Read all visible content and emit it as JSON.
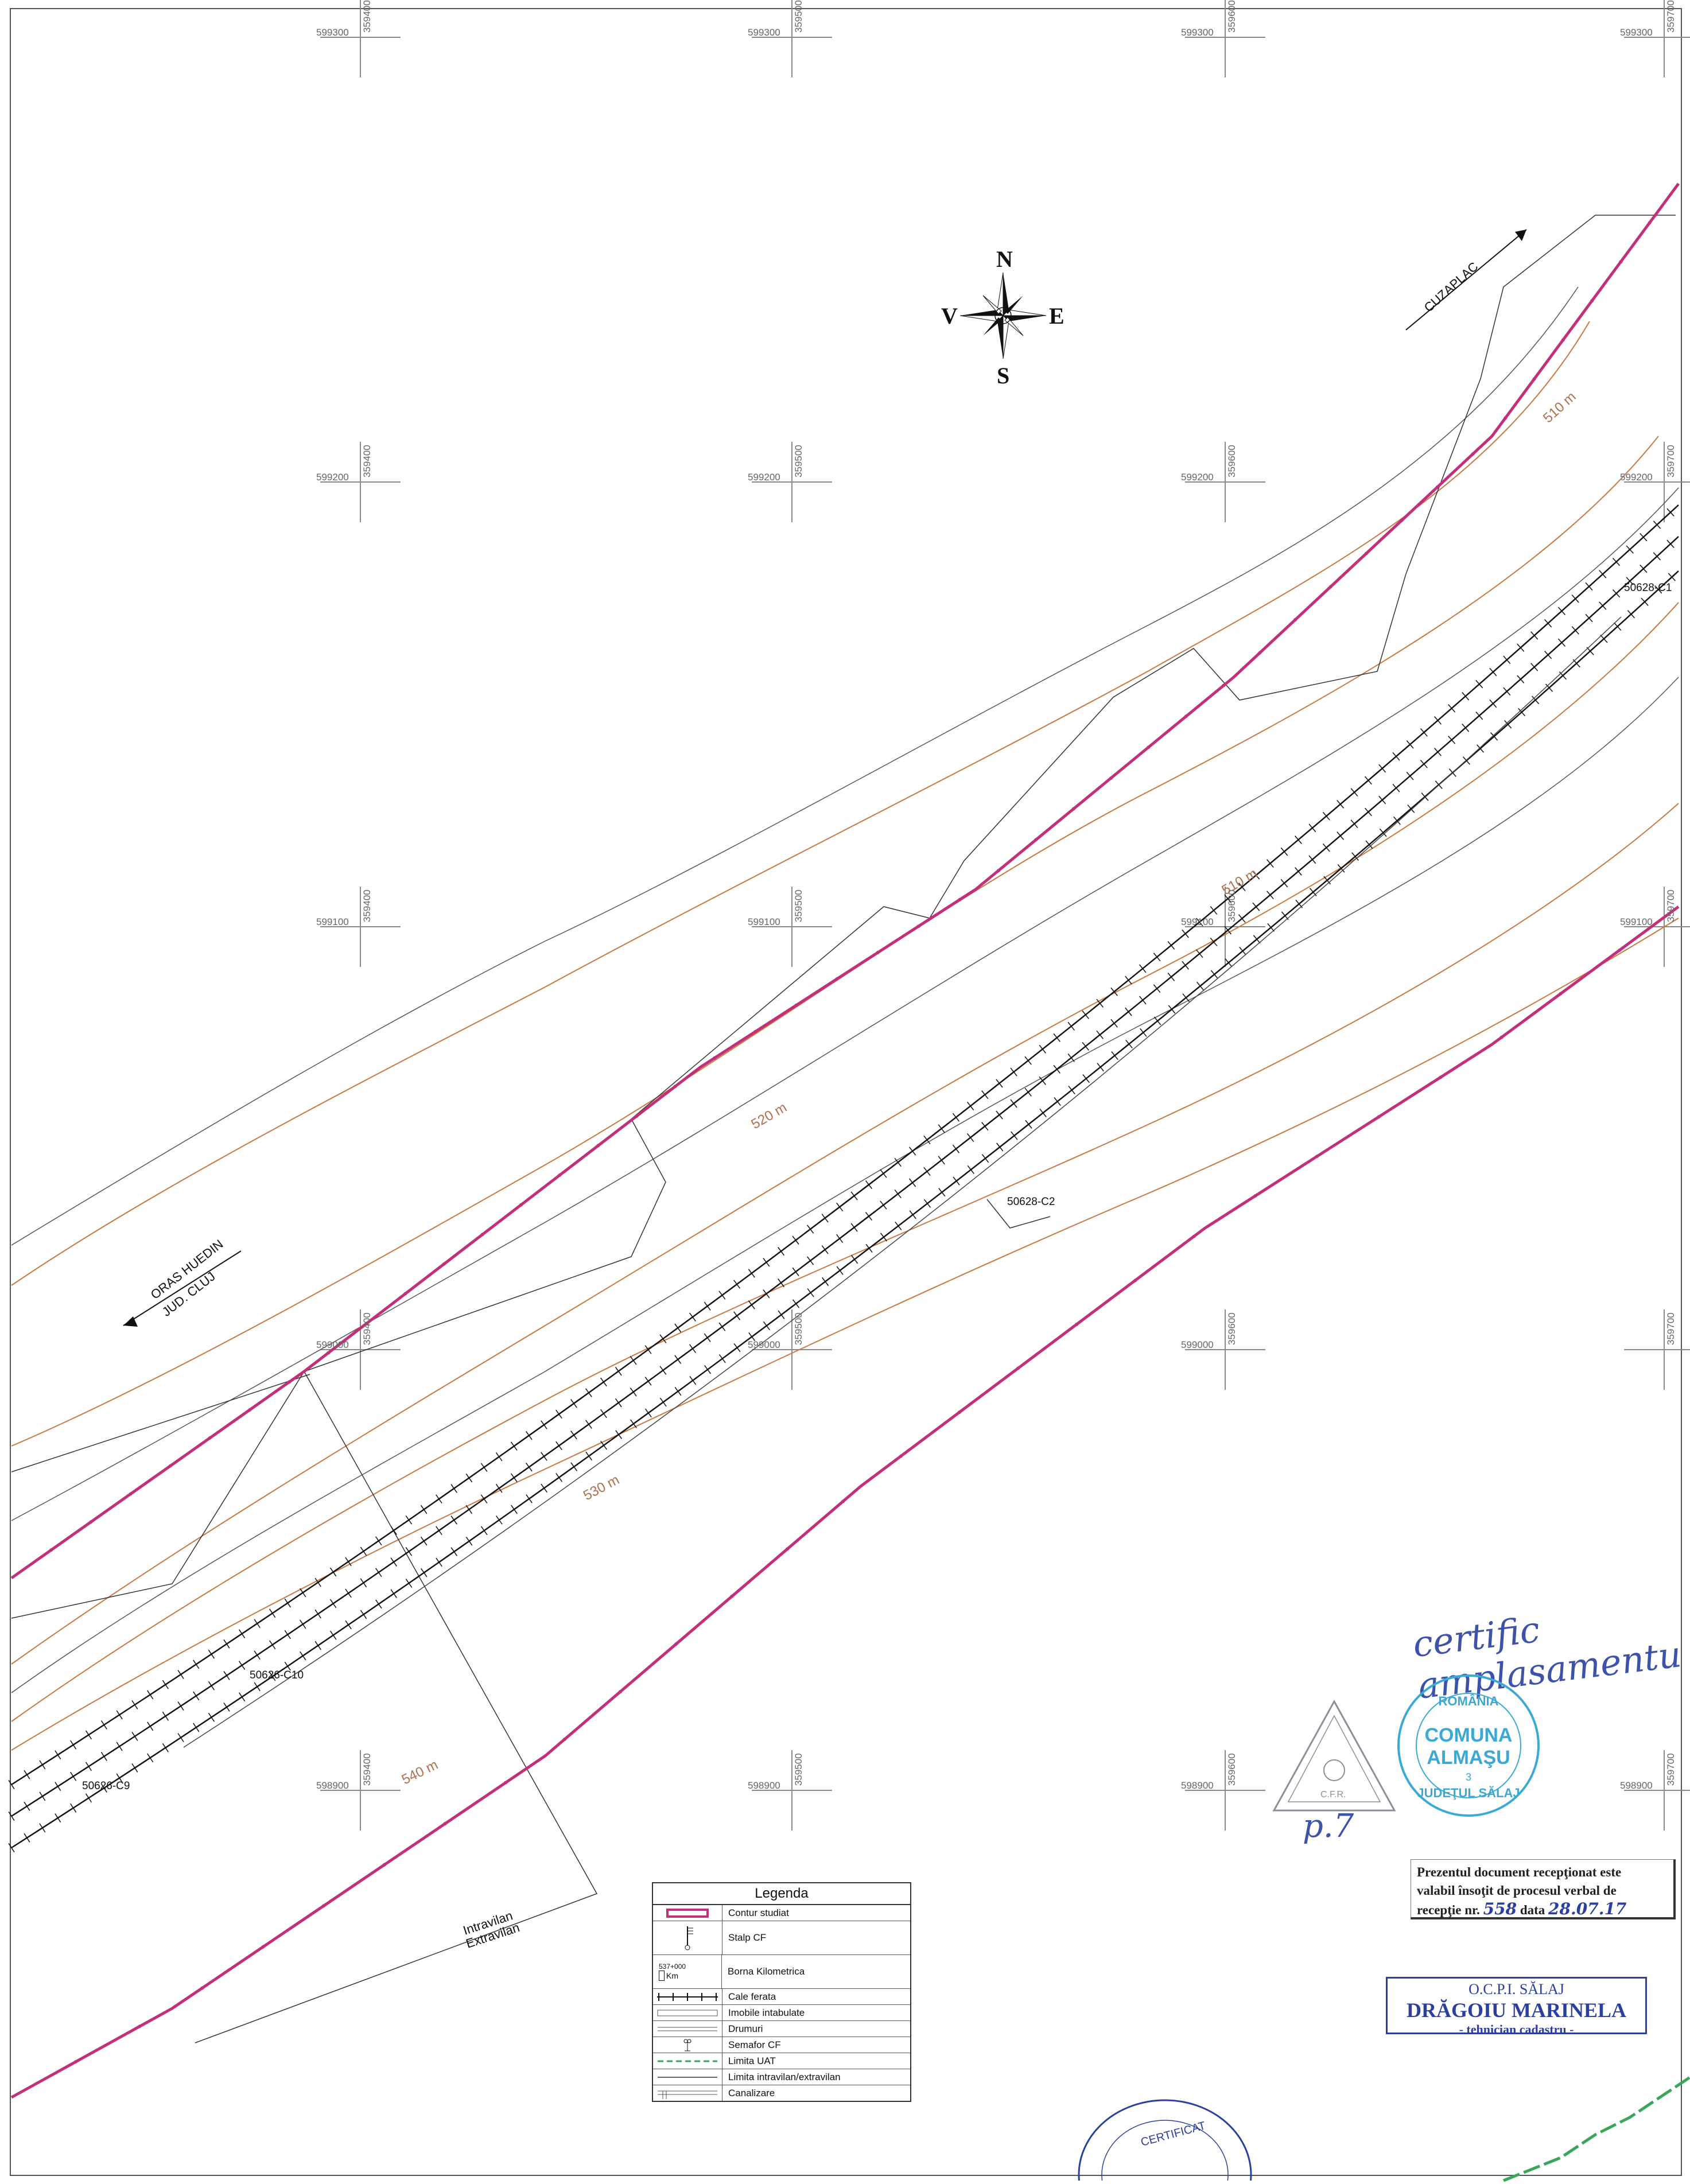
{
  "map": {
    "compass": {
      "n": "N",
      "s": "S",
      "e": "E",
      "v": "V"
    },
    "direction_labels": {
      "cuzaplac": "CUZAPLAC",
      "huedin_line1": "ORAS HUEDIN",
      "huedin_line2": "JUD. CLUJ"
    },
    "grid_labels": {
      "row1": [
        "599300",
        "599300",
        "599300",
        "599300"
      ],
      "row2": [
        "599200",
        "599200",
        "599200",
        "599200"
      ],
      "row3": [
        "599100",
        "599100",
        "599100",
        "599100"
      ],
      "row4": [
        "599000",
        "599000",
        "599000"
      ],
      "row5": [
        "598900",
        "598900",
        "598900",
        "598900"
      ],
      "cols_row1": [
        "359400",
        "359500",
        "359600",
        "359700"
      ],
      "cols_row2": [
        "359400",
        "359500",
        "359600",
        "359700"
      ],
      "cols_row3": [
        "359400",
        "359500",
        "359600",
        "359700"
      ],
      "cols_row4": [
        "359400",
        "359500",
        "359600",
        "359700"
      ],
      "cols_row5": [
        "359400",
        "359500",
        "359600",
        "359700"
      ]
    },
    "contours": [
      "510 m",
      "520 m",
      "530 m",
      "540 m",
      "510 m"
    ],
    "buildings": [
      "50628-C1",
      "50628-C2",
      "50626-C10",
      "50626-C9"
    ],
    "zone_labels": {
      "intravilan": "Intravilan",
      "extravilan": "Extravilan"
    },
    "colors": {
      "contour": "#c97840",
      "boundary": "#c2307a",
      "grid": "#888888"
    }
  },
  "legend": {
    "title": "Legenda",
    "items": [
      {
        "label": "Contur studiat"
      },
      {
        "label": "Stalp CF"
      },
      {
        "label": "Borna Kilometrica",
        "km_number": "537+000",
        "km_unit": "Km"
      },
      {
        "label": "Cale ferata"
      },
      {
        "label": "Imobile intabulate"
      },
      {
        "label": "Drumuri"
      },
      {
        "label": "Semafor CF"
      },
      {
        "label": "Limita UAT"
      },
      {
        "label": "Limita intravilan/extravilan"
      },
      {
        "label": "Canalizare"
      }
    ]
  },
  "annotations": {
    "handwriting": "certific amplasamentu",
    "stamp_round": {
      "top": "ROMÂNIA",
      "line1": "COMUNA",
      "line2": "ALMAŞU",
      "number": "3",
      "bottom": "JUDEŢUL SĂLAJ"
    },
    "stamp_triangle": "C.F.R.",
    "initials": "p.7",
    "reception": {
      "line1": "Prezentul document recepţionat este",
      "line2": "valabil însoţit de procesul verbal de",
      "line3_prefix": "recepţie nr.",
      "number": "558",
      "date_label": "data",
      "date": "28.07.17"
    },
    "ocpi_stamp": {
      "line1": "O.C.P.I. SĂLAJ",
      "line2": "DRĂGOIU MARINELA",
      "line3": "- tehnician cadastru -"
    },
    "cert_stamp": "CERTIFICAT"
  }
}
